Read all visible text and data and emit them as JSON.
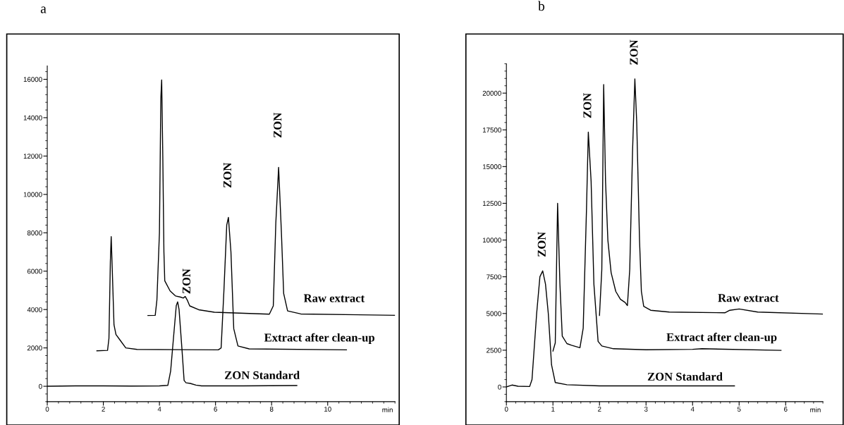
{
  "chart_data": [
    {
      "type": "line",
      "title": "a",
      "xlabel": "min",
      "xlim": [
        0,
        12.4
      ],
      "xticks": [
        0,
        2,
        4,
        6,
        8,
        10
      ],
      "ylim": [
        -800,
        16700
      ],
      "yticks": [
        0,
        2000,
        4000,
        6000,
        8000,
        10000,
        12000,
        14000,
        16000
      ],
      "grid": false,
      "legend": false,
      "marker": "none",
      "line_style": "solid",
      "series": [
        {
          "name": "ZON Standard",
          "color": "#000000",
          "x": [
            0,
            1,
            2,
            3,
            4,
            4.3,
            4.4,
            4.5,
            4.6,
            4.65,
            4.7,
            4.8,
            4.88,
            4.95,
            5.1,
            5.3,
            5.5,
            7,
            8.9
          ],
          "values": [
            0,
            20,
            20,
            10,
            20,
            50,
            800,
            2500,
            4200,
            4400,
            4000,
            2000,
            300,
            180,
            150,
            60,
            20,
            20,
            40
          ]
        },
        {
          "name": "Extract after clean-up",
          "color": "#000000",
          "x": [
            1.77,
            2.15,
            2.2,
            2.25,
            2.28,
            2.32,
            2.38,
            2.45,
            2.6,
            2.8,
            3.2,
            6.1,
            6.2,
            6.3,
            6.4,
            6.46,
            6.55,
            6.65,
            6.8,
            7.2,
            10.67
          ],
          "values": [
            1850,
            1870,
            2500,
            6500,
            7800,
            6000,
            3200,
            2700,
            2400,
            2000,
            1920,
            1900,
            2000,
            5000,
            8400,
            8800,
            7000,
            3000,
            2100,
            1950,
            1900
          ]
        },
        {
          "name": "Raw extract",
          "color": "#000000",
          "x": [
            3.59,
            3.85,
            3.91,
            4.0,
            4.05,
            4.08,
            4.12,
            4.16,
            4.19,
            4.38,
            4.57,
            4.75,
            4.85,
            4.92,
            4.99,
            5.08,
            5.4,
            5.96,
            7.92,
            8.06,
            8.15,
            8.25,
            8.35,
            8.43,
            8.57,
            9.04,
            12.4
          ],
          "values": [
            3690,
            3700,
            4500,
            8000,
            15000,
            15970,
            12000,
            7000,
            5500,
            4970,
            4710,
            4650,
            4600,
            4680,
            4500,
            4190,
            3990,
            3860,
            3760,
            4190,
            8500,
            11410,
            8000,
            4840,
            3930,
            3770,
            3700
          ]
        }
      ],
      "annotations": [
        {
          "text": "ZON",
          "x": 4.65,
          "y": 4400
        },
        {
          "text": "ZON",
          "x": 6.46,
          "y": 8800
        },
        {
          "text": "ZON",
          "x": 8.25,
          "y": 11410
        }
      ]
    },
    {
      "type": "line",
      "title": "b",
      "xlabel": "min",
      "xlim": [
        0,
        6.8
      ],
      "xticks": [
        0,
        1,
        2,
        3,
        4,
        5,
        6
      ],
      "ylim": [
        -1000,
        22000
      ],
      "yticks": [
        0,
        2500,
        5000,
        7500,
        10000,
        12500,
        15000,
        17500,
        20000
      ],
      "grid": false,
      "legend": false,
      "marker": "none",
      "line_style": "solid",
      "series": [
        {
          "name": "ZON Standard",
          "color": "#000000",
          "x": [
            0,
            0.12,
            0.25,
            0.5,
            0.55,
            0.65,
            0.72,
            0.78,
            0.84,
            0.9,
            0.97,
            1.05,
            1.3,
            2,
            4.9
          ],
          "values": [
            0,
            130,
            50,
            30,
            500,
            5000,
            7500,
            7900,
            7000,
            5000,
            1500,
            300,
            150,
            70,
            70
          ]
        },
        {
          "name": "Extract after clean-up",
          "color": "#000000",
          "x": [
            1.0,
            1.05,
            1.1,
            1.15,
            1.2,
            1.3,
            1.4,
            1.58,
            1.65,
            1.72,
            1.76,
            1.82,
            1.88,
            1.97,
            2.05,
            2.3,
            3,
            4,
            4.2,
            5.9
          ],
          "values": [
            2440,
            3000,
            12500,
            7000,
            3460,
            2950,
            2840,
            2670,
            4000,
            12000,
            17350,
            14000,
            7000,
            3100,
            2790,
            2600,
            2530,
            2560,
            2600,
            2490
          ]
        },
        {
          "name": "Raw extract",
          "color": "#000000",
          "x": [
            2.0,
            2.05,
            2.09,
            2.13,
            2.18,
            2.25,
            2.35,
            2.45,
            2.55,
            2.6,
            2.65,
            2.71,
            2.76,
            2.8,
            2.86,
            2.9,
            2.95,
            3.1,
            3.5,
            4.7,
            4.8,
            5.0,
            5.4,
            6.8
          ],
          "values": [
            4870,
            8000,
            20580,
            14000,
            10000,
            7780,
            6500,
            5970,
            5750,
            5540,
            8000,
            16000,
            20970,
            18000,
            10000,
            6500,
            5490,
            5220,
            5100,
            5050,
            5220,
            5310,
            5100,
            4960
          ]
        }
      ],
      "annotations": [
        {
          "text": "ZON",
          "x": 0.78,
          "y": 7900
        },
        {
          "text": "ZON",
          "x": 1.76,
          "y": 17350
        },
        {
          "text": "ZON",
          "x": 2.76,
          "y": 20970
        }
      ]
    }
  ]
}
